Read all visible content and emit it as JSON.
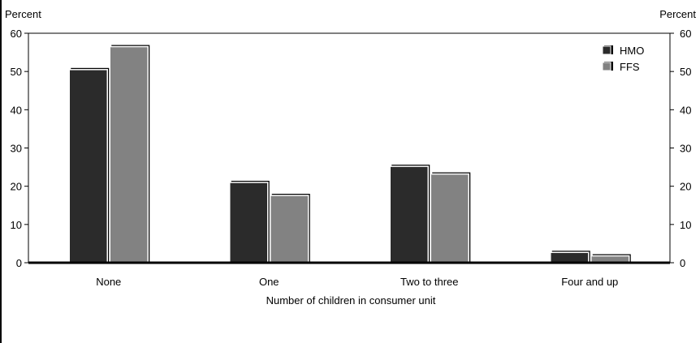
{
  "chart_data": {
    "type": "bar",
    "xlabel": "Number of children in consumer unit",
    "ylabel_left": "Percent",
    "ylabel_right": "Percent",
    "ylim": [
      0,
      60
    ],
    "yticks": [
      0,
      10,
      20,
      30,
      40,
      50,
      60
    ],
    "categories": [
      "None",
      "One",
      "Two to three",
      "Four and up"
    ],
    "series": [
      {
        "name": "HMO",
        "color": "#2b2b2b",
        "values": [
          50.5,
          21,
          25.2,
          2.7
        ]
      },
      {
        "name": "FFS",
        "color": "#828282",
        "values": [
          56.5,
          17.6,
          23.2,
          1.8
        ]
      }
    ],
    "legend_position": "top-right",
    "grid": false
  }
}
